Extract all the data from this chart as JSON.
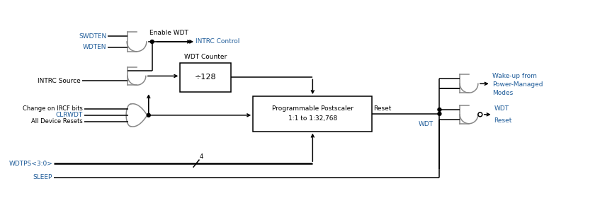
{
  "bg_color": "#ffffff",
  "black": "#000000",
  "blue": "#1F5C99",
  "gray": "#888888",
  "figsize": [
    8.47,
    2.94
  ],
  "dpi": 100,
  "lw": 1.1,
  "labels": {
    "swdten": "SWDTEN",
    "wdten": "WDTEN",
    "intrc_source": "INTRC Source",
    "enable_wdt": "Enable WDT",
    "intrc_control": "INTRC Control",
    "wdt_counter": "WDT Counter",
    "div128": "÷128",
    "change_ircf": "Change on IRCF bits",
    "clrwdt": "CLRWDT",
    "all_device": "All Device Resets",
    "prog_post1": "Programmable Postscaler",
    "prog_post2": "1:1 to 1:32,768",
    "reset": "Reset",
    "wdt": "WDT",
    "wakeup1": "Wake-up from",
    "wakeup2": "Power-Managed",
    "wakeup3": "Modes",
    "wdt_reset1": "WDT",
    "wdt_reset2": "Reset",
    "wdtps": "WDTPS<3:0>",
    "sleep": "SLEEP",
    "four": "4"
  }
}
